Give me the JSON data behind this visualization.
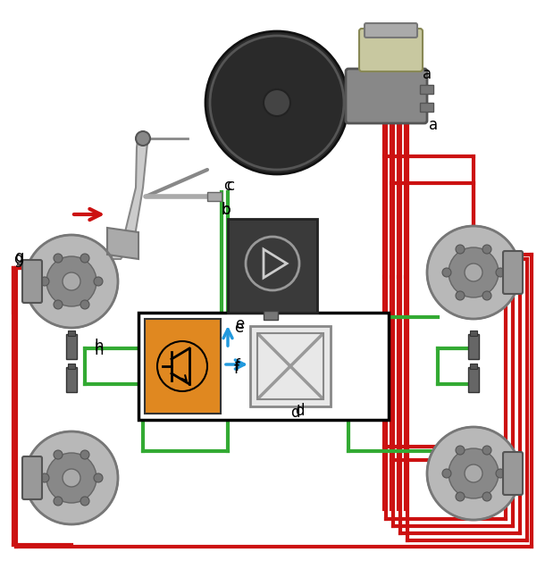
{
  "bg_color": "#ffffff",
  "border_color": "#000000",
  "red_line": "#cc1111",
  "green_line": "#33aa33",
  "blue_arrow": "#2299dd",
  "orange_box": "#e08820",
  "gray_dark": "#444444",
  "gray_mid": "#888888",
  "gray_light": "#cccccc",
  "gray_lightest": "#e8e8e8",
  "label_a": "a",
  "label_b": "b",
  "label_c": "c",
  "label_d": "d",
  "label_e": "e",
  "label_f": "f",
  "label_g": "g",
  "label_h": "h",
  "figsize": [
    6.1,
    6.37
  ],
  "dpi": 100
}
